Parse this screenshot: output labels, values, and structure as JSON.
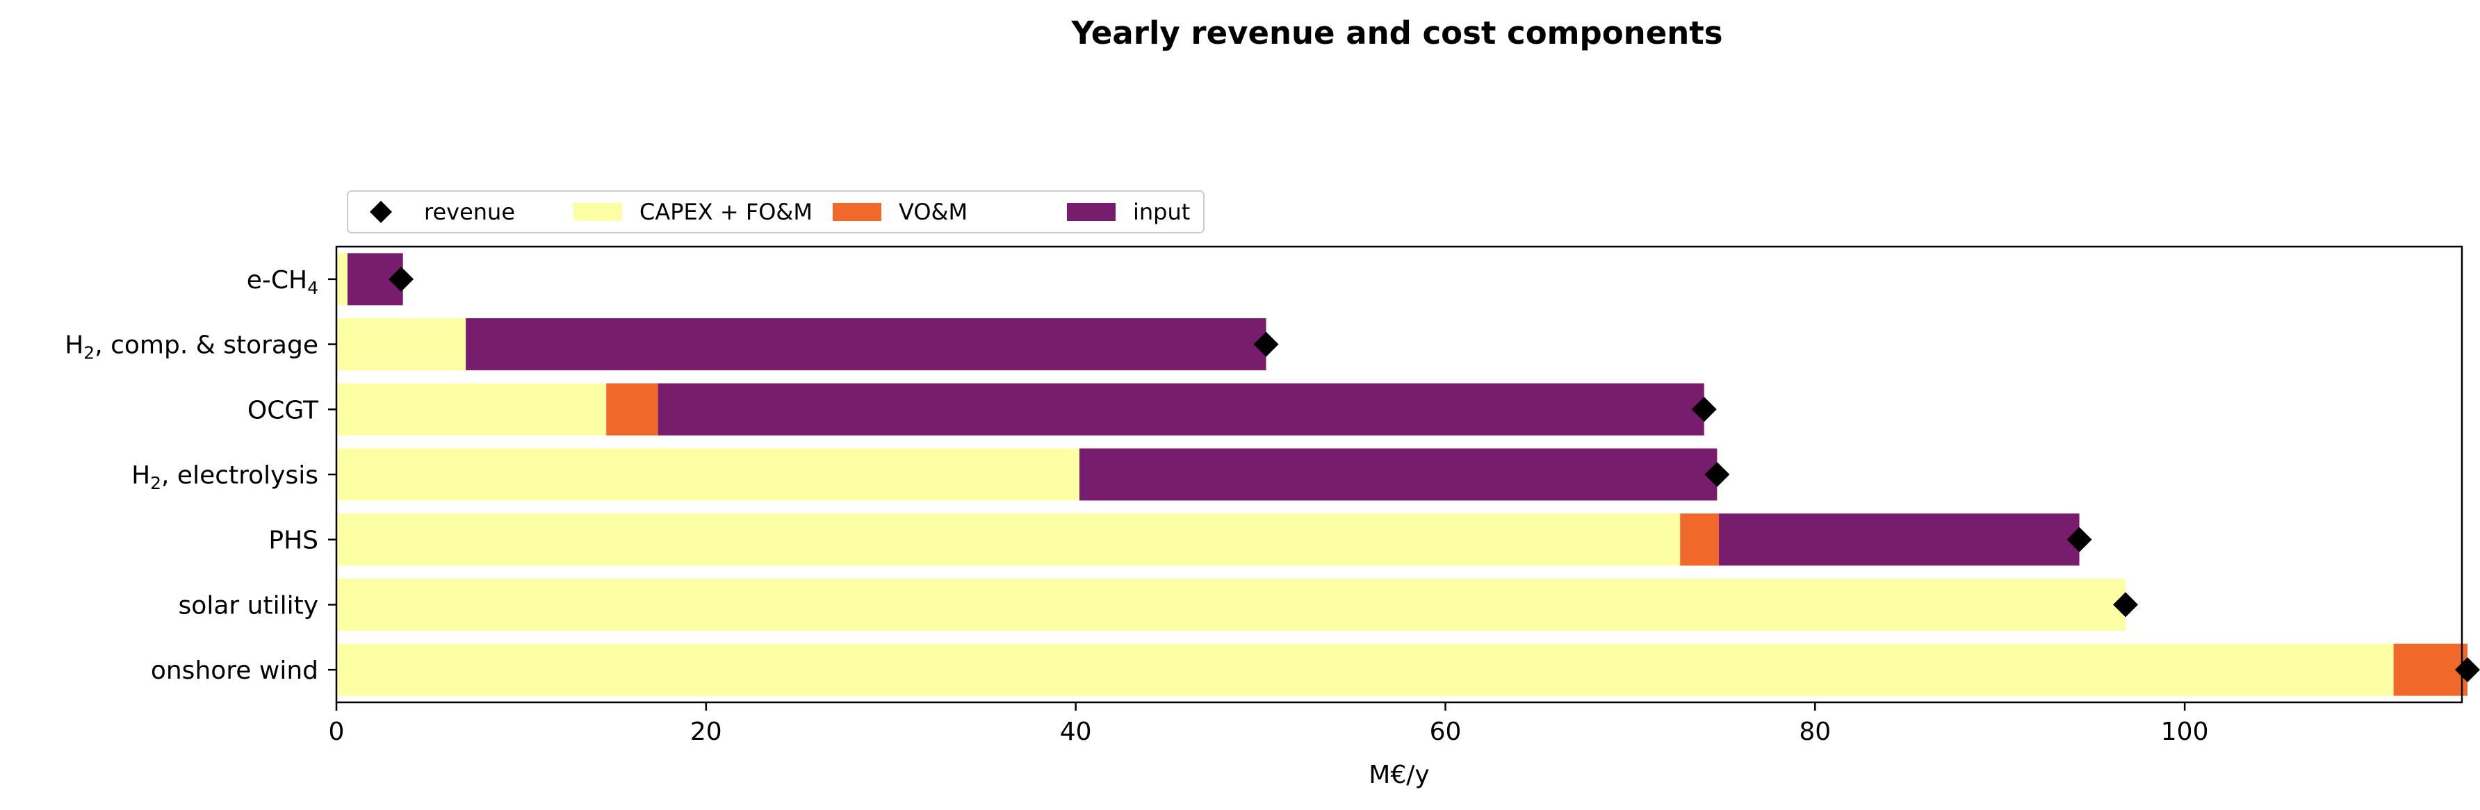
{
  "chart_data": {
    "type": "bar",
    "orientation": "horizontal",
    "stacked": true,
    "title": "Yearly revenue and cost components",
    "xlabel": "M€/y",
    "ylabel": "",
    "xlim": [
      0,
      115
    ],
    "x_ticks": [
      0,
      20,
      40,
      60,
      80,
      100
    ],
    "categories": [
      {
        "base": "e-CH",
        "sub": "4",
        "rest": ""
      },
      {
        "base": "H",
        "sub": "2",
        "rest": ", comp. & storage"
      },
      {
        "base": "OCGT",
        "sub": "",
        "rest": ""
      },
      {
        "base": "H",
        "sub": "2",
        "rest": ", electrolysis"
      },
      {
        "base": "PHS",
        "sub": "",
        "rest": ""
      },
      {
        "base": "solar utility",
        "sub": "",
        "rest": ""
      },
      {
        "base": "onshore wind",
        "sub": "",
        "rest": ""
      }
    ],
    "series": [
      {
        "name": "CAPEX + FO&M",
        "color": "#fcffa4",
        "values": [
          0.6,
          7.0,
          14.6,
          40.2,
          72.7,
          96.8,
          111.3
        ]
      },
      {
        "name": "VO&M",
        "color": "#f1682b",
        "values": [
          0.0,
          0.0,
          2.8,
          0.0,
          2.1,
          0.0,
          4.0
        ]
      },
      {
        "name": "input",
        "color": "#781c6d",
        "values": [
          3.0,
          43.3,
          56.6,
          34.5,
          19.5,
          0.0,
          0.0
        ]
      }
    ],
    "revenue": {
      "name": "revenue",
      "color": "#000000",
      "marker": "diamond",
      "values": [
        3.5,
        50.3,
        74.0,
        74.7,
        94.3,
        96.8,
        115.3
      ]
    },
    "legend": {
      "placement": "above-left",
      "order": [
        "revenue",
        "CAPEX + FO&M",
        "VO&M",
        "input"
      ]
    },
    "grid": false
  }
}
